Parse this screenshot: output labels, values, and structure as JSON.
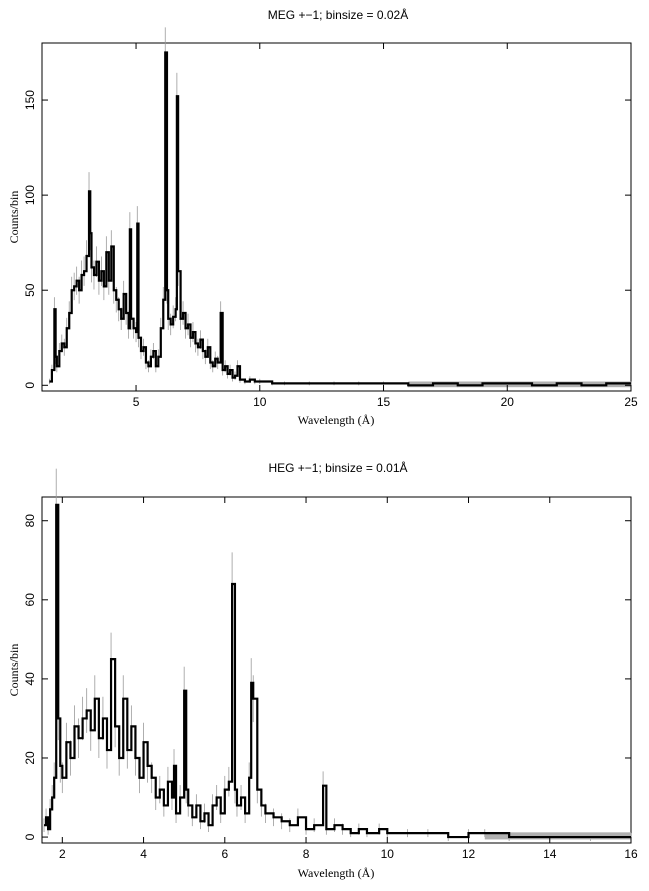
{
  "chart_data": [
    {
      "type": "line",
      "title": "MEG +−1; binsize = 0.02Å",
      "xlabel": "Wavelength (Å)",
      "ylabel": "Counts/bin",
      "xlim": [
        1.2,
        25
      ],
      "ylim": [
        -3,
        180
      ],
      "x_ticks": [
        5,
        10,
        15,
        20,
        25
      ],
      "y_ticks": [
        0,
        50,
        100,
        150
      ],
      "x_tick_labels": [
        "5",
        "10",
        "15",
        "20",
        "25"
      ],
      "y_tick_labels": [
        "0",
        "50",
        "100",
        "150"
      ],
      "grid": false,
      "series": [
        {
          "x": [
            1.5,
            1.6,
            1.7,
            1.75,
            1.8,
            1.9,
            2.0,
            2.1,
            2.2,
            2.3,
            2.4,
            2.5,
            2.6,
            2.7,
            2.8,
            2.9,
            3.0,
            3.1,
            3.15,
            3.2,
            3.3,
            3.4,
            3.5,
            3.6,
            3.7,
            3.8,
            3.9,
            4.0,
            4.1,
            4.2,
            4.3,
            4.4,
            4.5,
            4.6,
            4.7,
            4.75,
            4.8,
            4.9,
            5.0,
            5.05,
            5.1,
            5.2,
            5.3,
            5.4,
            5.5,
            5.6,
            5.7,
            5.8,
            5.9,
            6.0,
            6.1,
            6.18,
            6.25,
            6.3,
            6.4,
            6.5,
            6.6,
            6.65,
            6.7,
            6.8,
            6.9,
            7.0,
            7.1,
            7.2,
            7.3,
            7.4,
            7.5,
            7.6,
            7.7,
            7.8,
            7.9,
            8.0,
            8.1,
            8.2,
            8.3,
            8.42,
            8.5,
            8.6,
            8.7,
            8.8,
            8.9,
            9.0,
            9.1,
            9.2,
            9.4,
            9.6,
            9.8,
            10.0,
            10.5,
            11.0,
            12.0,
            13.0,
            14.0,
            15.0,
            16.0,
            17.0,
            18.0,
            19.0,
            20.0,
            21.0,
            22.0,
            23.0,
            24.0,
            25.0
          ],
          "values": [
            2,
            8,
            40,
            15,
            10,
            18,
            22,
            20,
            30,
            38,
            50,
            52,
            55,
            50,
            58,
            60,
            68,
            102,
            80,
            62,
            58,
            65,
            55,
            60,
            52,
            70,
            55,
            73,
            50,
            45,
            40,
            35,
            48,
            38,
            30,
            82,
            35,
            30,
            28,
            85,
            25,
            18,
            20,
            12,
            10,
            15,
            18,
            10,
            15,
            30,
            45,
            175,
            50,
            35,
            32,
            36,
            40,
            152,
            60,
            35,
            38,
            30,
            32,
            25,
            28,
            22,
            20,
            24,
            18,
            15,
            20,
            12,
            10,
            14,
            12,
            38,
            8,
            10,
            6,
            8,
            4,
            5,
            10,
            3,
            2,
            3,
            2,
            2,
            1,
            1,
            1,
            1,
            1,
            1,
            0,
            1,
            0,
            1,
            1,
            0,
            1,
            0,
            1,
            1
          ]
        }
      ]
    },
    {
      "type": "line",
      "title": "HEG +−1; binsize = 0.01Å",
      "xlabel": "Wavelength (Å)",
      "ylabel": "Counts/bin",
      "xlim": [
        1.5,
        16
      ],
      "ylim": [
        -1.5,
        86
      ],
      "x_ticks": [
        2,
        4,
        6,
        8,
        10,
        12,
        14,
        16
      ],
      "y_ticks": [
        0,
        20,
        40,
        60,
        80
      ],
      "x_tick_labels": [
        "2",
        "4",
        "6",
        "8",
        "10",
        "12",
        "14",
        "16"
      ],
      "y_tick_labels": [
        "0",
        "20",
        "40",
        "60",
        "80"
      ],
      "grid": false,
      "series": [
        {
          "x": [
            1.55,
            1.6,
            1.65,
            1.7,
            1.75,
            1.8,
            1.85,
            1.9,
            1.95,
            2.0,
            2.1,
            2.2,
            2.3,
            2.4,
            2.5,
            2.6,
            2.7,
            2.8,
            2.9,
            3.0,
            3.1,
            3.2,
            3.3,
            3.4,
            3.5,
            3.6,
            3.7,
            3.8,
            3.9,
            4.0,
            4.1,
            4.2,
            4.3,
            4.4,
            4.5,
            4.6,
            4.7,
            4.75,
            4.8,
            4.9,
            5.0,
            5.05,
            5.1,
            5.2,
            5.3,
            5.4,
            5.5,
            5.6,
            5.7,
            5.8,
            5.9,
            6.0,
            6.1,
            6.18,
            6.25,
            6.3,
            6.4,
            6.5,
            6.6,
            6.65,
            6.7,
            6.8,
            6.9,
            7.0,
            7.2,
            7.4,
            7.6,
            7.8,
            8.0,
            8.2,
            8.42,
            8.5,
            8.7,
            8.9,
            9.1,
            9.3,
            9.5,
            9.8,
            10.0,
            10.5,
            11.0,
            11.5,
            12.0,
            12.4,
            13.0,
            14.0,
            15.0,
            16.0
          ],
          "values": [
            3,
            5,
            2,
            7,
            10,
            15,
            84,
            30,
            18,
            15,
            24,
            20,
            28,
            25,
            30,
            32,
            27,
            35,
            25,
            30,
            22,
            45,
            28,
            20,
            35,
            22,
            28,
            20,
            15,
            24,
            18,
            15,
            10,
            12,
            8,
            14,
            10,
            18,
            6,
            10,
            37,
            12,
            8,
            5,
            8,
            4,
            6,
            3,
            8,
            10,
            6,
            12,
            14,
            64,
            12,
            8,
            10,
            6,
            15,
            39,
            35,
            12,
            8,
            6,
            5,
            4,
            3,
            5,
            2,
            3,
            13,
            2,
            3,
            2,
            1,
            2,
            1,
            2,
            1,
            1,
            1,
            0,
            1,
            1,
            0,
            0,
            0,
            0
          ]
        }
      ]
    }
  ]
}
